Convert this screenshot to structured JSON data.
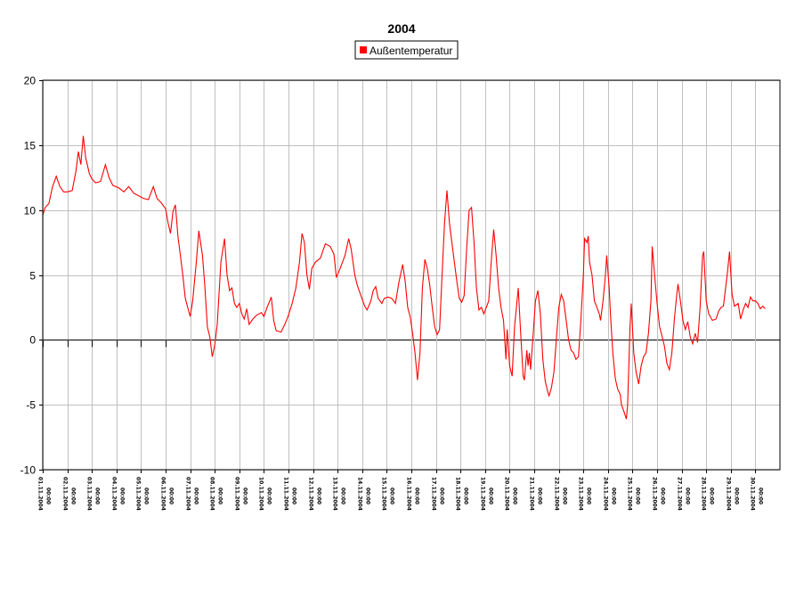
{
  "chart_data": {
    "type": "line",
    "title": "2004",
    "legend": {
      "position": "top-center"
    },
    "grid": true,
    "ylim": [
      -10,
      20
    ],
    "yticks": [
      20,
      15,
      10,
      5,
      0,
      -5,
      -10
    ],
    "xlim": [
      0,
      30
    ],
    "xticks": [
      {
        "t": 0,
        "date": "01.11.2004",
        "time": "00:00"
      },
      {
        "t": 1,
        "date": "02.11.2004",
        "time": "00:00"
      },
      {
        "t": 2,
        "date": "03.11.2004",
        "time": "00:00"
      },
      {
        "t": 3,
        "date": "04.11.2004",
        "time": "00:00"
      },
      {
        "t": 4,
        "date": "05.11.2004",
        "time": "00:00"
      },
      {
        "t": 5,
        "date": "06.11.2004",
        "time": "00:00"
      },
      {
        "t": 6,
        "date": "07.11.2004",
        "time": "00:00"
      },
      {
        "t": 7,
        "date": "08.11.2004",
        "time": "00:00"
      },
      {
        "t": 8,
        "date": "09.11.2004",
        "time": "00:00"
      },
      {
        "t": 9,
        "date": "10.11.2004",
        "time": "00:00"
      },
      {
        "t": 10,
        "date": "11.11.2004",
        "time": "00:00"
      },
      {
        "t": 11,
        "date": "12.11.2004",
        "time": "00:00"
      },
      {
        "t": 12,
        "date": "13.11.2004",
        "time": "00:00"
      },
      {
        "t": 13,
        "date": "14.11.2004",
        "time": "00:00"
      },
      {
        "t": 14,
        "date": "15.11.2004",
        "time": "00:00"
      },
      {
        "t": 15,
        "date": "16.11.2004",
        "time": "00:00"
      },
      {
        "t": 16,
        "date": "17.11.2004",
        "time": "00:00"
      },
      {
        "t": 17,
        "date": "18.11.2004",
        "time": "00:00"
      },
      {
        "t": 18,
        "date": "19.11.2004",
        "time": "00:00"
      },
      {
        "t": 19,
        "date": "20.11.2004",
        "time": "00:00"
      },
      {
        "t": 20,
        "date": "21.11.2004",
        "time": "00:00"
      },
      {
        "t": 21,
        "date": "22.11.2004",
        "time": "00:00"
      },
      {
        "t": 22,
        "date": "23.11.2004",
        "time": "00:00"
      },
      {
        "t": 23,
        "date": "24.11.2004",
        "time": "00:00"
      },
      {
        "t": 24,
        "date": "25.11.2004",
        "time": "00:00"
      },
      {
        "t": 25,
        "date": "26.11.2004",
        "time": "00:00"
      },
      {
        "t": 26,
        "date": "27.11.2004",
        "time": "00:00"
      },
      {
        "t": 27,
        "date": "28.11.2004",
        "time": "00:00"
      },
      {
        "t": 28,
        "date": "29.11.2004",
        "time": "00:00"
      },
      {
        "t": 29,
        "date": "30.11.2004",
        "time": "00:00"
      }
    ],
    "series": [
      {
        "name": "Außentemperatur",
        "color": "#ff0000",
        "points": [
          [
            0,
            9.6
          ],
          [
            0.1,
            10.2
          ],
          [
            0.25,
            10.5
          ],
          [
            0.4,
            11.8
          ],
          [
            0.55,
            12.6
          ],
          [
            0.7,
            11.8
          ],
          [
            0.85,
            11.4
          ],
          [
            1.0,
            11.4
          ],
          [
            1.2,
            11.5
          ],
          [
            1.35,
            13.0
          ],
          [
            1.45,
            14.5
          ],
          [
            1.55,
            13.5
          ],
          [
            1.65,
            15.7
          ],
          [
            1.75,
            14.0
          ],
          [
            1.9,
            12.8
          ],
          [
            2.0,
            12.4
          ],
          [
            2.15,
            12.1
          ],
          [
            2.35,
            12.2
          ],
          [
            2.55,
            13.5
          ],
          [
            2.7,
            12.5
          ],
          [
            2.85,
            11.9
          ],
          [
            3.1,
            11.7
          ],
          [
            3.3,
            11.4
          ],
          [
            3.5,
            11.8
          ],
          [
            3.7,
            11.3
          ],
          [
            3.9,
            11.1
          ],
          [
            4.1,
            10.9
          ],
          [
            4.3,
            10.8
          ],
          [
            4.5,
            11.8
          ],
          [
            4.65,
            10.9
          ],
          [
            4.8,
            10.6
          ],
          [
            5.0,
            10.1
          ],
          [
            5.1,
            9.0
          ],
          [
            5.2,
            8.2
          ],
          [
            5.3,
            9.9
          ],
          [
            5.4,
            10.4
          ],
          [
            5.5,
            8.0
          ],
          [
            5.6,
            6.5
          ],
          [
            5.7,
            5.0
          ],
          [
            5.8,
            3.2
          ],
          [
            5.9,
            2.5
          ],
          [
            6.0,
            1.8
          ],
          [
            6.1,
            3.0
          ],
          [
            6.25,
            6.0
          ],
          [
            6.35,
            8.4
          ],
          [
            6.5,
            6.5
          ],
          [
            6.6,
            4.0
          ],
          [
            6.7,
            1.0
          ],
          [
            6.8,
            0.2
          ],
          [
            6.9,
            -1.3
          ],
          [
            7.0,
            -0.4
          ],
          [
            7.1,
            1.2
          ],
          [
            7.25,
            6.0
          ],
          [
            7.4,
            7.8
          ],
          [
            7.5,
            5.0
          ],
          [
            7.6,
            3.8
          ],
          [
            7.7,
            4.0
          ],
          [
            7.8,
            2.8
          ],
          [
            7.9,
            2.5
          ],
          [
            8.0,
            2.8
          ],
          [
            8.1,
            2.0
          ],
          [
            8.2,
            1.6
          ],
          [
            8.3,
            2.4
          ],
          [
            8.4,
            1.2
          ],
          [
            8.55,
            1.6
          ],
          [
            8.7,
            1.9
          ],
          [
            8.9,
            2.1
          ],
          [
            9.0,
            1.8
          ],
          [
            9.15,
            2.6
          ],
          [
            9.3,
            3.3
          ],
          [
            9.4,
            1.5
          ],
          [
            9.5,
            0.7
          ],
          [
            9.7,
            0.6
          ],
          [
            9.85,
            1.2
          ],
          [
            10.0,
            1.9
          ],
          [
            10.15,
            2.8
          ],
          [
            10.3,
            4.0
          ],
          [
            10.45,
            6.0
          ],
          [
            10.55,
            8.2
          ],
          [
            10.65,
            7.5
          ],
          [
            10.75,
            5.0
          ],
          [
            10.85,
            3.9
          ],
          [
            10.95,
            5.5
          ],
          [
            11.1,
            6.0
          ],
          [
            11.3,
            6.3
          ],
          [
            11.5,
            7.4
          ],
          [
            11.7,
            7.2
          ],
          [
            11.85,
            6.6
          ],
          [
            11.95,
            4.8
          ],
          [
            12.1,
            5.5
          ],
          [
            12.3,
            6.5
          ],
          [
            12.45,
            7.8
          ],
          [
            12.55,
            7.0
          ],
          [
            12.7,
            5.0
          ],
          [
            12.8,
            4.2
          ],
          [
            12.95,
            3.4
          ],
          [
            13.1,
            2.6
          ],
          [
            13.2,
            2.3
          ],
          [
            13.35,
            3.0
          ],
          [
            13.45,
            3.8
          ],
          [
            13.55,
            4.1
          ],
          [
            13.65,
            3.2
          ],
          [
            13.8,
            2.8
          ],
          [
            13.9,
            3.2
          ],
          [
            14.05,
            3.3
          ],
          [
            14.2,
            3.2
          ],
          [
            14.35,
            2.8
          ],
          [
            14.5,
            4.5
          ],
          [
            14.65,
            5.8
          ],
          [
            14.75,
            4.5
          ],
          [
            14.85,
            2.5
          ],
          [
            14.95,
            1.8
          ],
          [
            15.05,
            0.5
          ],
          [
            15.15,
            -1.0
          ],
          [
            15.25,
            -3.1
          ],
          [
            15.35,
            -1.0
          ],
          [
            15.45,
            4.0
          ],
          [
            15.55,
            6.2
          ],
          [
            15.65,
            5.5
          ],
          [
            15.75,
            4.2
          ],
          [
            15.85,
            2.5
          ],
          [
            15.95,
            1.0
          ],
          [
            16.05,
            0.4
          ],
          [
            16.15,
            0.8
          ],
          [
            16.25,
            5.0
          ],
          [
            16.35,
            9.0
          ],
          [
            16.45,
            11.5
          ],
          [
            16.55,
            9.0
          ],
          [
            16.65,
            7.5
          ],
          [
            16.75,
            6.0
          ],
          [
            16.85,
            4.5
          ],
          [
            16.95,
            3.2
          ],
          [
            17.05,
            2.9
          ],
          [
            17.15,
            3.4
          ],
          [
            17.25,
            7.0
          ],
          [
            17.35,
            10.0
          ],
          [
            17.45,
            10.2
          ],
          [
            17.55,
            7.5
          ],
          [
            17.65,
            4.0
          ],
          [
            17.75,
            2.3
          ],
          [
            17.85,
            2.5
          ],
          [
            17.95,
            2.0
          ],
          [
            18.05,
            2.5
          ],
          [
            18.15,
            3.0
          ],
          [
            18.25,
            6.0
          ],
          [
            18.35,
            8.5
          ],
          [
            18.45,
            6.5
          ],
          [
            18.55,
            4.0
          ],
          [
            18.65,
            2.5
          ],
          [
            18.75,
            1.5
          ],
          [
            18.85,
            -1.5
          ],
          [
            18.9,
            0.8
          ],
          [
            19.0,
            -2.0
          ],
          [
            19.1,
            -2.8
          ],
          [
            19.2,
            1.0
          ],
          [
            19.3,
            3.0
          ],
          [
            19.35,
            4.0
          ],
          [
            19.45,
            0.5
          ],
          [
            19.55,
            -2.8
          ],
          [
            19.6,
            -3.1
          ],
          [
            19.7,
            -0.8
          ],
          [
            19.75,
            -2.0
          ],
          [
            19.8,
            -1.0
          ],
          [
            19.85,
            -2.3
          ],
          [
            19.95,
            0.2
          ],
          [
            20.05,
            3.0
          ],
          [
            20.15,
            3.8
          ],
          [
            20.25,
            2.0
          ],
          [
            20.35,
            -1.5
          ],
          [
            20.45,
            -3.2
          ],
          [
            20.55,
            -4.0
          ],
          [
            20.6,
            -4.3
          ],
          [
            20.7,
            -3.7
          ],
          [
            20.8,
            -2.5
          ],
          [
            20.9,
            0.0
          ],
          [
            21.0,
            2.5
          ],
          [
            21.1,
            3.5
          ],
          [
            21.2,
            3.0
          ],
          [
            21.3,
            1.5
          ],
          [
            21.4,
            0.0
          ],
          [
            21.5,
            -0.8
          ],
          [
            21.6,
            -1.0
          ],
          [
            21.7,
            -1.5
          ],
          [
            21.8,
            -1.3
          ],
          [
            21.9,
            1.5
          ],
          [
            22.0,
            5.0
          ],
          [
            22.05,
            7.8
          ],
          [
            22.15,
            7.5
          ],
          [
            22.2,
            8.0
          ],
          [
            22.25,
            6.0
          ],
          [
            22.35,
            5.0
          ],
          [
            22.45,
            3.0
          ],
          [
            22.55,
            2.5
          ],
          [
            22.65,
            2.0
          ],
          [
            22.7,
            1.5
          ],
          [
            22.8,
            3.0
          ],
          [
            22.9,
            5.0
          ],
          [
            22.95,
            6.5
          ],
          [
            23.05,
            4.0
          ],
          [
            23.1,
            2.0
          ],
          [
            23.2,
            -1.0
          ],
          [
            23.3,
            -3.0
          ],
          [
            23.4,
            -3.8
          ],
          [
            23.5,
            -4.2
          ],
          [
            23.55,
            -5.0
          ],
          [
            23.65,
            -5.5
          ],
          [
            23.75,
            -6.1
          ],
          [
            23.8,
            -5.0
          ],
          [
            23.9,
            1.0
          ],
          [
            23.95,
            2.8
          ],
          [
            24.05,
            -1.0
          ],
          [
            24.15,
            -2.5
          ],
          [
            24.25,
            -3.4
          ],
          [
            24.35,
            -2.0
          ],
          [
            24.45,
            -1.3
          ],
          [
            24.55,
            -1.0
          ],
          [
            24.65,
            0.5
          ],
          [
            24.75,
            3.0
          ],
          [
            24.8,
            7.2
          ],
          [
            24.9,
            5.0
          ],
          [
            25.0,
            2.8
          ],
          [
            25.1,
            1.0
          ],
          [
            25.2,
            0.3
          ],
          [
            25.3,
            -0.5
          ],
          [
            25.4,
            -1.8
          ],
          [
            25.5,
            -2.3
          ],
          [
            25.6,
            -1.0
          ],
          [
            25.7,
            1.5
          ],
          [
            25.8,
            3.5
          ],
          [
            25.85,
            4.3
          ],
          [
            25.95,
            3.0
          ],
          [
            26.05,
            1.5
          ],
          [
            26.15,
            0.8
          ],
          [
            26.25,
            1.4
          ],
          [
            26.35,
            0.2
          ],
          [
            26.45,
            -0.3
          ],
          [
            26.55,
            0.5
          ],
          [
            26.65,
            -0.2
          ],
          [
            26.75,
            2.5
          ],
          [
            26.85,
            6.5
          ],
          [
            26.9,
            6.8
          ],
          [
            27.0,
            3.0
          ],
          [
            27.1,
            2.0
          ],
          [
            27.25,
            1.5
          ],
          [
            27.4,
            1.6
          ],
          [
            27.5,
            2.2
          ],
          [
            27.6,
            2.5
          ],
          [
            27.7,
            2.6
          ],
          [
            27.85,
            5.0
          ],
          [
            27.95,
            6.8
          ],
          [
            28.05,
            3.5
          ],
          [
            28.15,
            2.6
          ],
          [
            28.3,
            2.8
          ],
          [
            28.4,
            1.6
          ],
          [
            28.5,
            2.3
          ],
          [
            28.6,
            2.8
          ],
          [
            28.7,
            2.5
          ],
          [
            28.8,
            3.3
          ],
          [
            28.9,
            3.0
          ],
          [
            29.0,
            3.0
          ],
          [
            29.1,
            2.8
          ],
          [
            29.2,
            2.4
          ],
          [
            29.3,
            2.6
          ],
          [
            29.4,
            2.4
          ]
        ]
      }
    ]
  }
}
